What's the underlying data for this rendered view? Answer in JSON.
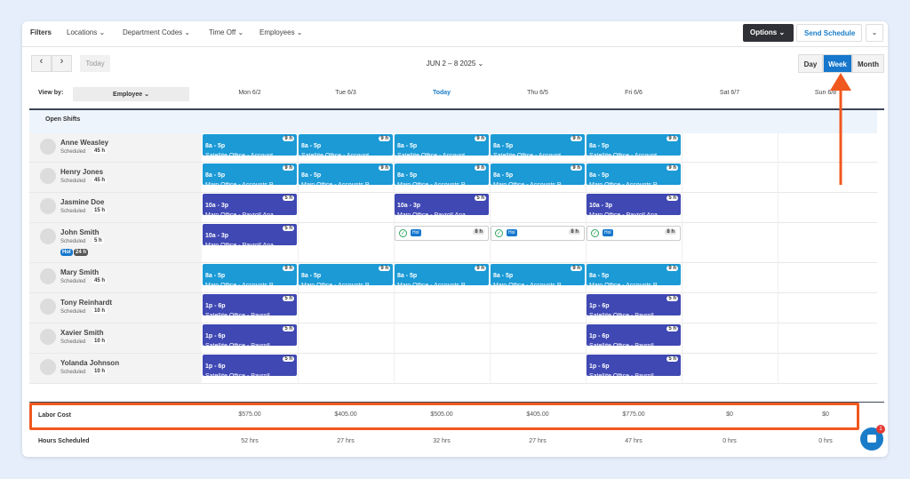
{
  "toolbar": {
    "label": "Filters",
    "filters": [
      "Locations",
      "Department Codes",
      "Time Off",
      "Employees"
    ],
    "options": "Options",
    "send": "Send Schedule"
  },
  "nav": {
    "today": "Today",
    "range": "JUN 2 – 8 2025",
    "views": [
      "Day",
      "Week",
      "Month"
    ],
    "active_view": 1
  },
  "header": {
    "view_by": "View by:",
    "view_by_value": "Employee",
    "days": [
      "Mon 6/2",
      "Tue 6/3",
      "Today",
      "Thu 6/5",
      "Fri 6/6",
      "Sat 6/7",
      "Sun 6/8"
    ],
    "today_index": 2
  },
  "open_shifts": "Open Shifts",
  "employees": [
    {
      "name": "Anne Weasley",
      "status": "Scheduled",
      "hours": "45 h",
      "shifts": [
        {
          "time": "8a - 5p",
          "location": "Satellite Office - Accounts Payable",
          "hours": "9 h",
          "color": "#1b9ad6"
        },
        {
          "time": "8a - 5p",
          "location": "Satellite Office - Accounts Payable",
          "hours": "9 h",
          "color": "#1b9ad6"
        },
        {
          "time": "8a - 5p",
          "location": "Satellite Office - Accounts Payable",
          "hours": "9 h",
          "color": "#1b9ad6"
        },
        {
          "time": "8a - 5p",
          "location": "Satellite Office - Accounts Payable",
          "hours": "9 h",
          "color": "#1b9ad6"
        },
        {
          "time": "8a - 5p",
          "location": "Satellite Office - Accounts Payable",
          "hours": "9 h",
          "color": "#1b9ad6"
        },
        null,
        null
      ]
    },
    {
      "name": "Henry Jones",
      "status": "Scheduled",
      "hours": "45 h",
      "shifts": [
        {
          "time": "8a - 5p",
          "location": "Main Office - Accounts Payable",
          "hours": "9 h",
          "color": "#1b9ad6"
        },
        {
          "time": "8a - 5p",
          "location": "Main Office - Accounts Payable",
          "hours": "9 h",
          "color": "#1b9ad6"
        },
        {
          "time": "8a - 5p",
          "location": "Main Office - Accounts Payable",
          "hours": "9 h",
          "color": "#1b9ad6"
        },
        {
          "time": "8a - 5p",
          "location": "Main Office - Accounts Payable",
          "hours": "9 h",
          "color": "#1b9ad6"
        },
        {
          "time": "8a - 5p",
          "location": "Main Office - Accounts Payable",
          "hours": "9 h",
          "color": "#1b9ad6"
        },
        null,
        null
      ]
    },
    {
      "name": "Jasmine Doe",
      "status": "Scheduled",
      "hours": "15 h",
      "shifts": [
        {
          "time": "10a - 3p",
          "location": "Main Office - Payroll Analyst",
          "hours": "5 h",
          "color": "#3f48b3"
        },
        null,
        {
          "time": "10a - 3p",
          "location": "Main Office - Payroll Analyst",
          "hours": "5 h",
          "color": "#3f48b3"
        },
        null,
        {
          "time": "10a - 3p",
          "location": "Main Office - Payroll Analyst",
          "hours": "5 h",
          "color": "#3f48b3"
        },
        null,
        null
      ]
    },
    {
      "name": "John Smith",
      "status": "Scheduled",
      "hours": "5 h",
      "badges": [
        "Hol",
        "24 h"
      ],
      "shifts": [
        {
          "time": "10a - 3p",
          "location": "Main Office - Payroll Analyst",
          "hours": "5 h",
          "color": "#3f48b3"
        },
        null,
        {
          "timeoff": "Hol",
          "hours": "8 h"
        },
        {
          "timeoff": "Hol",
          "hours": "8 h"
        },
        {
          "timeoff": "Hol",
          "hours": "8 h"
        },
        null,
        null
      ]
    },
    {
      "name": "Mary Smith",
      "status": "Scheduled",
      "hours": "45 h",
      "shifts": [
        {
          "time": "8a - 5p",
          "location": "Main Office - Accounts Payable",
          "hours": "9 h",
          "color": "#1b9ad6"
        },
        {
          "time": "8a - 5p",
          "location": "Main Office - Accounts Payable",
          "hours": "9 h",
          "color": "#1b9ad6"
        },
        {
          "time": "8a - 5p",
          "location": "Main Office - Accounts Payable",
          "hours": "9 h",
          "color": "#1b9ad6"
        },
        {
          "time": "8a - 5p",
          "location": "Main Office - Accounts Payable",
          "hours": "9 h",
          "color": "#1b9ad6"
        },
        {
          "time": "8a - 5p",
          "location": "Main Office - Accounts Payable",
          "hours": "9 h",
          "color": "#1b9ad6"
        },
        null,
        null
      ]
    },
    {
      "name": "Tony Reinhardt",
      "status": "Scheduled",
      "hours": "10 h",
      "shifts": [
        {
          "time": "1p - 6p",
          "location": "Satellite Office - Payroll Accountant",
          "hours": "5 h",
          "color": "#3f48b3"
        },
        null,
        null,
        null,
        {
          "time": "1p - 6p",
          "location": "Satellite Office - Payroll Accountant",
          "hours": "5 h",
          "color": "#3f48b3"
        },
        null,
        null
      ]
    },
    {
      "name": "Xavier Smith",
      "status": "Scheduled",
      "hours": "10 h",
      "shifts": [
        {
          "time": "1p - 6p",
          "location": "Satellite Office - Payroll Accountant",
          "hours": "5 h",
          "color": "#3f48b3"
        },
        null,
        null,
        null,
        {
          "time": "1p - 6p",
          "location": "Satellite Office - Payroll Accountant",
          "hours": "5 h",
          "color": "#3f48b3"
        },
        null,
        null
      ]
    },
    {
      "name": "Yolanda Johnson",
      "status": "Scheduled",
      "hours": "10 h",
      "shifts": [
        {
          "time": "1p - 6p",
          "location": "Satellite Office - Payroll Accountant",
          "hours": "5 h",
          "color": "#3f48b3"
        },
        null,
        null,
        null,
        {
          "time": "1p - 6p",
          "location": "Satellite Office - Payroll Accountant",
          "hours": "5 h",
          "color": "#3f48b3"
        },
        null,
        null
      ]
    }
  ],
  "footer": {
    "labor_label": "Labor Cost",
    "labor": [
      "$575.00",
      "$405.00",
      "$505.00",
      "$405.00",
      "$775.00",
      "$0",
      "$0"
    ],
    "hours_label": "Hours Scheduled",
    "hours": [
      "52 hrs",
      "27 hrs",
      "32 hrs",
      "27 hrs",
      "47 hrs",
      "0 hrs",
      "0 hrs"
    ]
  },
  "chat": {
    "badge": "1"
  }
}
